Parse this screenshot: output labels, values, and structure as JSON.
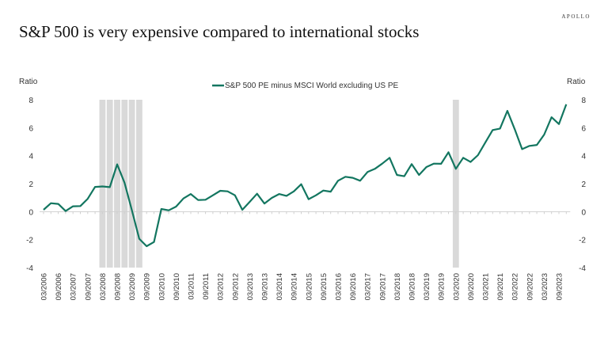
{
  "brand": "APOLLO",
  "title": "S&P 500 is very expensive compared to international stocks",
  "chart_data": {
    "type": "line",
    "ylabel_left": "Ratio",
    "ylabel_right": "Ratio",
    "ylim": [
      -4,
      8
    ],
    "yticks": [
      -4,
      -2,
      0,
      2,
      4,
      6,
      8
    ],
    "grid": false,
    "legend_placement": "top-center",
    "line_color": "#137660",
    "shade_color": "#d9d9d9",
    "x_start": "03/2006",
    "x_frequency": "quarterly",
    "xtick_labels": [
      "03/2006",
      "09/2006",
      "03/2007",
      "09/2007",
      "03/2008",
      "09/2008",
      "03/2009",
      "09/2009",
      "03/2010",
      "09/2010",
      "03/2011",
      "09/2011",
      "03/2012",
      "09/2012",
      "03/2013",
      "09/2013",
      "03/2014",
      "09/2014",
      "03/2015",
      "09/2015",
      "03/2016",
      "09/2016",
      "03/2017",
      "09/2017",
      "03/2018",
      "09/2018",
      "03/2019",
      "09/2019",
      "03/2020",
      "09/2020",
      "03/2021",
      "09/2021",
      "03/2022",
      "09/2022",
      "03/2023",
      "09/2023"
    ],
    "recession_quarters": [
      "03/2008",
      "06/2008",
      "09/2008",
      "12/2008",
      "03/2009",
      "06/2009",
      "03/2020"
    ],
    "series": [
      {
        "name": "S&P 500 PE minus MSCI World excluding US PE",
        "values": [
          0.13,
          0.6,
          0.55,
          0.04,
          0.38,
          0.4,
          0.92,
          1.77,
          1.8,
          1.75,
          3.38,
          2.07,
          0.1,
          -1.94,
          -2.47,
          -2.17,
          0.19,
          0.09,
          0.36,
          0.94,
          1.26,
          0.83,
          0.85,
          1.17,
          1.49,
          1.45,
          1.17,
          0.13,
          0.7,
          1.28,
          0.58,
          0.98,
          1.26,
          1.13,
          1.45,
          1.96,
          0.89,
          1.17,
          1.51,
          1.43,
          2.21,
          2.49,
          2.42,
          2.21,
          2.83,
          3.06,
          3.43,
          3.85,
          2.62,
          2.53,
          3.4,
          2.62,
          3.19,
          3.43,
          3.42,
          4.25,
          3.06,
          3.85,
          3.55,
          4.04,
          4.94,
          5.83,
          5.94,
          7.21,
          5.89,
          4.47,
          4.7,
          4.77,
          5.51,
          6.75,
          6.26,
          7.68
        ]
      }
    ]
  }
}
